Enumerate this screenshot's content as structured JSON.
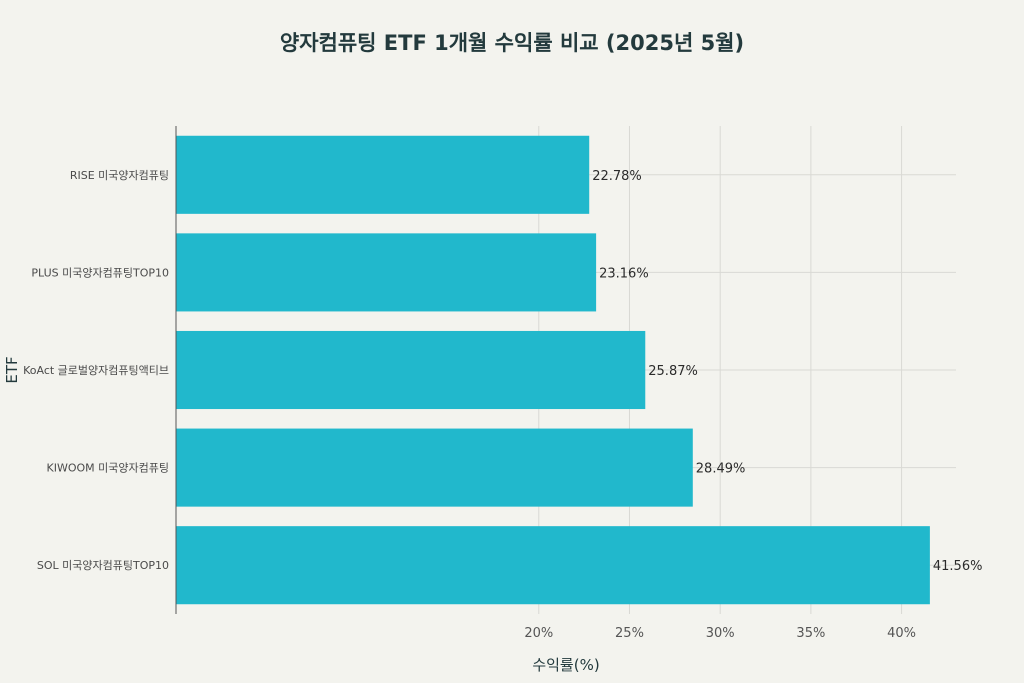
{
  "chart_data": {
    "type": "bar",
    "orientation": "horizontal",
    "title": "양자컴퓨팅 ETF 1개월 수익률 비교 (2025년 5월)",
    "xlabel": "수익률(%)",
    "ylabel": "ETF",
    "categories": [
      "RISE 미국양자컴퓨팅",
      "PLUS 미국양자컴퓨팅TOP10",
      "KoAct 글로벌양자컴퓨팅액티브",
      "KIWOOM 미국양자컴퓨팅",
      "SOL 미국양자컴퓨팅TOP10"
    ],
    "values": [
      22.78,
      23.16,
      25.87,
      28.49,
      41.56
    ],
    "value_labels": [
      "22.78%",
      "23.16%",
      "25.87%",
      "28.49%",
      "41.56%"
    ],
    "xlim": [
      0,
      43
    ],
    "xticks": [
      20,
      25,
      30,
      35,
      40
    ],
    "xtick_labels": [
      "20%",
      "25%",
      "30%",
      "35%",
      "40%"
    ],
    "bar_color": "#21b8cc",
    "grid": true
  }
}
